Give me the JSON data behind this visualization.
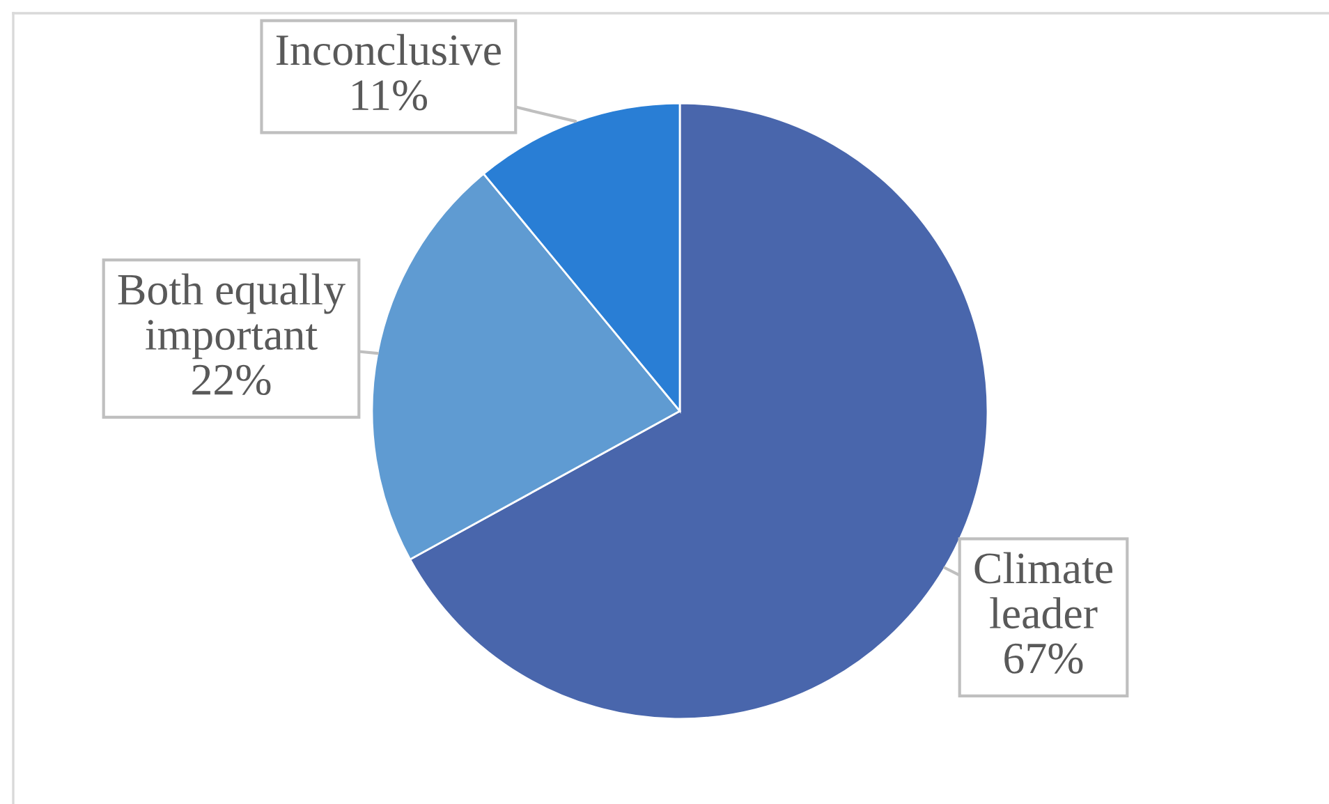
{
  "chart_data": {
    "type": "pie",
    "categories": [
      "Climate leader",
      "Both equally important",
      "Inconclusive"
    ],
    "values": [
      67,
      22,
      11
    ],
    "colors": [
      "#4966ac",
      "#5f9bd2",
      "#297ed5"
    ],
    "value_labels": [
      "67%",
      "22%",
      "11%"
    ]
  }
}
